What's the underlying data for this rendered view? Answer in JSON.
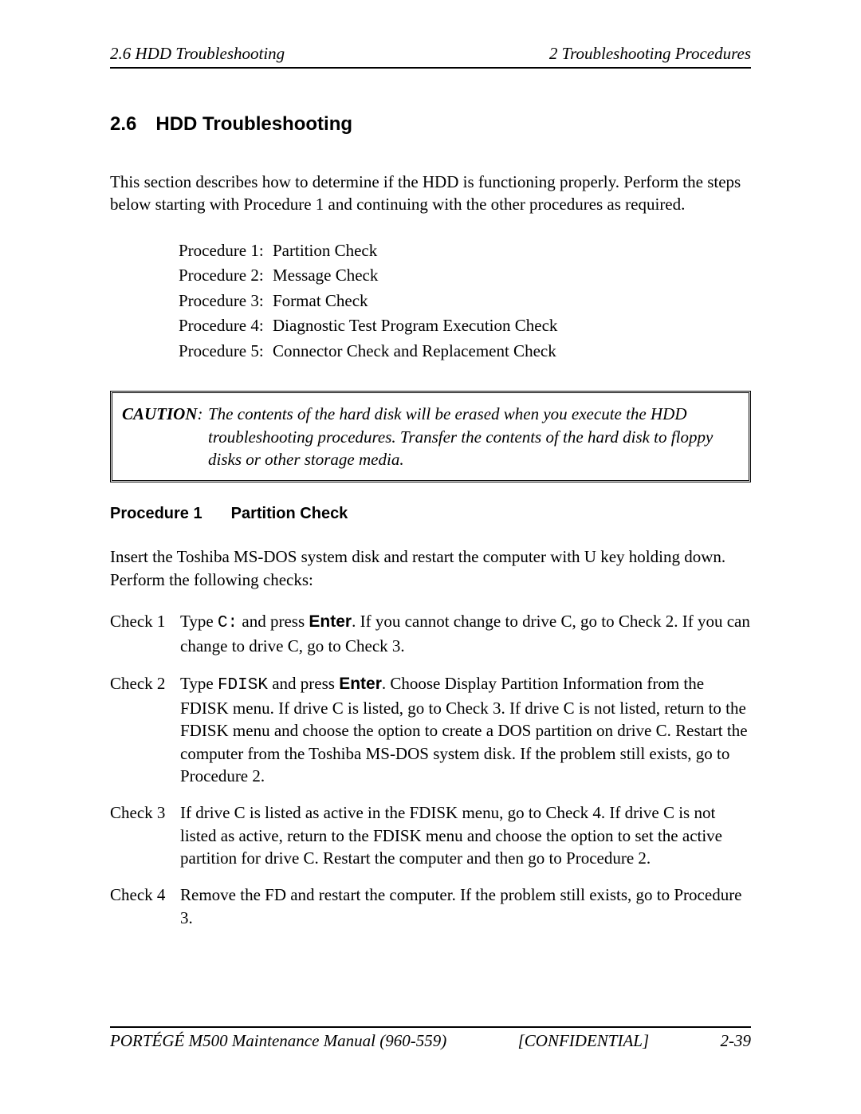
{
  "header": {
    "left": "2.6 HDD Troubleshooting",
    "right": "2  Troubleshooting Procedures"
  },
  "section": {
    "number": "2.6",
    "title": "HDD Troubleshooting"
  },
  "intro": "This section describes how to determine if the HDD is functioning properly. Perform the steps below starting with Procedure 1 and continuing with the other procedures as required.",
  "procedures": [
    {
      "label": "Procedure 1:",
      "title": "Partition Check"
    },
    {
      "label": "Procedure 2:",
      "title": "Message Check"
    },
    {
      "label": "Procedure 3:",
      "title": "Format Check"
    },
    {
      "label": "Procedure 4:",
      "title": "Diagnostic Test Program Execution Check"
    },
    {
      "label": "Procedure 5:",
      "title": "Connector Check and Replacement Check"
    }
  ],
  "caution": {
    "label": "CAUTION",
    "body": "The contents of the hard disk will be erased when you execute the HDD troubleshooting procedures. Transfer the contents of the hard disk to floppy disks or other storage media."
  },
  "procedure1": {
    "num": "Procedure 1",
    "title": "Partition Check",
    "intro": "Insert the Toshiba MS-DOS system disk and restart the computer with U key holding down. Perform the following checks:"
  },
  "checks": {
    "c1": {
      "label": "Check 1",
      "pre": "Type ",
      "mono": "C:",
      "mid": " and press ",
      "enter": "Enter",
      "post": ". If you cannot change to drive C, go to Check 2. If you can change to drive C, go to Check 3."
    },
    "c2": {
      "label": "Check 2",
      "pre": "Type ",
      "mono": "FDISK",
      "mid": " and press ",
      "enter": "Enter",
      "post": ". Choose Display Partition Information from the FDISK menu. If drive C is listed, go to Check 3. If drive C is not listed, return to the FDISK menu and choose the option to create a DOS partition on drive C. Restart the computer from the Toshiba MS-DOS system disk. If the problem still exists, go to Procedure 2."
    },
    "c3": {
      "label": "Check 3",
      "body": "If drive C is listed as active in the FDISK menu, go to Check 4. If drive C is not listed as active, return to the FDISK menu and choose the option to set the active partition for drive C. Restart the computer and then go to Procedure 2."
    },
    "c4": {
      "label": "Check 4",
      "body": "Remove the FD and restart the computer. If the problem still exists, go to Procedure 3."
    }
  },
  "footer": {
    "left": "PORTÉGÉ M500 Maintenance Manual (960-559)",
    "center": "[CONFIDENTIAL]",
    "right": "2-39"
  }
}
